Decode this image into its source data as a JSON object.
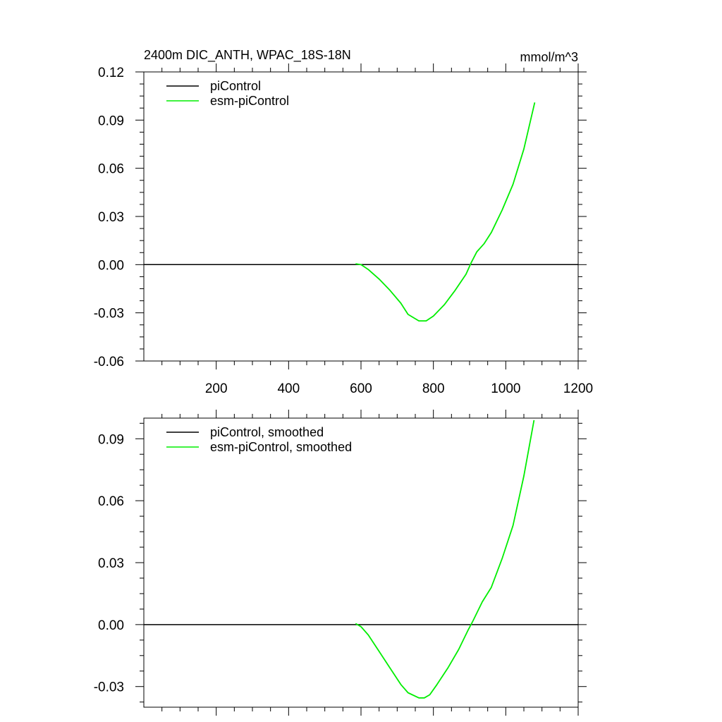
{
  "header": {
    "title": "2400m DIC_ANTH, WPAC_18S-18N",
    "units": "mmol/m^3"
  },
  "chart_data": [
    {
      "type": "line",
      "xlim": [
        0,
        1200
      ],
      "ylim": [
        -0.06,
        0.12
      ],
      "xticks": [
        200,
        400,
        600,
        800,
        1000,
        1200
      ],
      "xtick_labels": [
        "200",
        "400",
        "600",
        "800",
        "1000",
        "1200"
      ],
      "yticks": [
        -0.06,
        -0.03,
        0.0,
        0.03,
        0.06,
        0.09,
        0.12
      ],
      "ytick_labels": [
        "-0.06",
        "-0.03",
        "0.00",
        "0.03",
        "0.06",
        "0.09",
        "0.12"
      ],
      "grid": false,
      "legend_position": "top-left",
      "series": [
        {
          "name": "piControl",
          "color": "#000000",
          "x": [
            0,
            1200
          ],
          "y": [
            0.0,
            0.0
          ]
        },
        {
          "name": "esm-piControl",
          "color": "#00ee00",
          "x": [
            585,
            600,
            620,
            650,
            680,
            710,
            730,
            760,
            780,
            800,
            830,
            860,
            890,
            905,
            920,
            940,
            960,
            990,
            1020,
            1050,
            1080
          ],
          "y": [
            0.0005,
            0.0,
            -0.003,
            -0.009,
            -0.016,
            -0.024,
            -0.031,
            -0.035,
            -0.035,
            -0.032,
            -0.025,
            -0.016,
            -0.006,
            0.0015,
            0.008,
            0.013,
            0.02,
            0.034,
            0.05,
            0.072,
            0.101
          ]
        }
      ]
    },
    {
      "type": "line",
      "xlim": [
        0,
        1200
      ],
      "ylim": [
        -0.04,
        0.1
      ],
      "xticks": [
        200,
        400,
        600,
        800,
        1000,
        1200
      ],
      "yticks": [
        -0.03,
        0.0,
        0.03,
        0.06,
        0.09
      ],
      "ytick_labels": [
        "-0.03",
        "0.00",
        "0.03",
        "0.06",
        "0.09"
      ],
      "grid": false,
      "legend_position": "top-left",
      "series": [
        {
          "name": "piControl, smoothed",
          "color": "#000000",
          "x": [
            0,
            1200
          ],
          "y": [
            0.0,
            0.0
          ]
        },
        {
          "name": "esm-piControl, smoothed",
          "color": "#00ee00",
          "x": [
            585,
            600,
            620,
            650,
            680,
            710,
            730,
            760,
            775,
            790,
            810,
            840,
            870,
            895,
            910,
            935,
            960,
            990,
            1020,
            1050,
            1078
          ],
          "y": [
            0.0005,
            -0.001,
            -0.005,
            -0.013,
            -0.021,
            -0.029,
            -0.033,
            -0.0355,
            -0.0355,
            -0.034,
            -0.029,
            -0.021,
            -0.012,
            -0.003,
            0.002,
            0.011,
            0.018,
            0.032,
            0.048,
            0.072,
            0.099
          ]
        }
      ]
    }
  ]
}
